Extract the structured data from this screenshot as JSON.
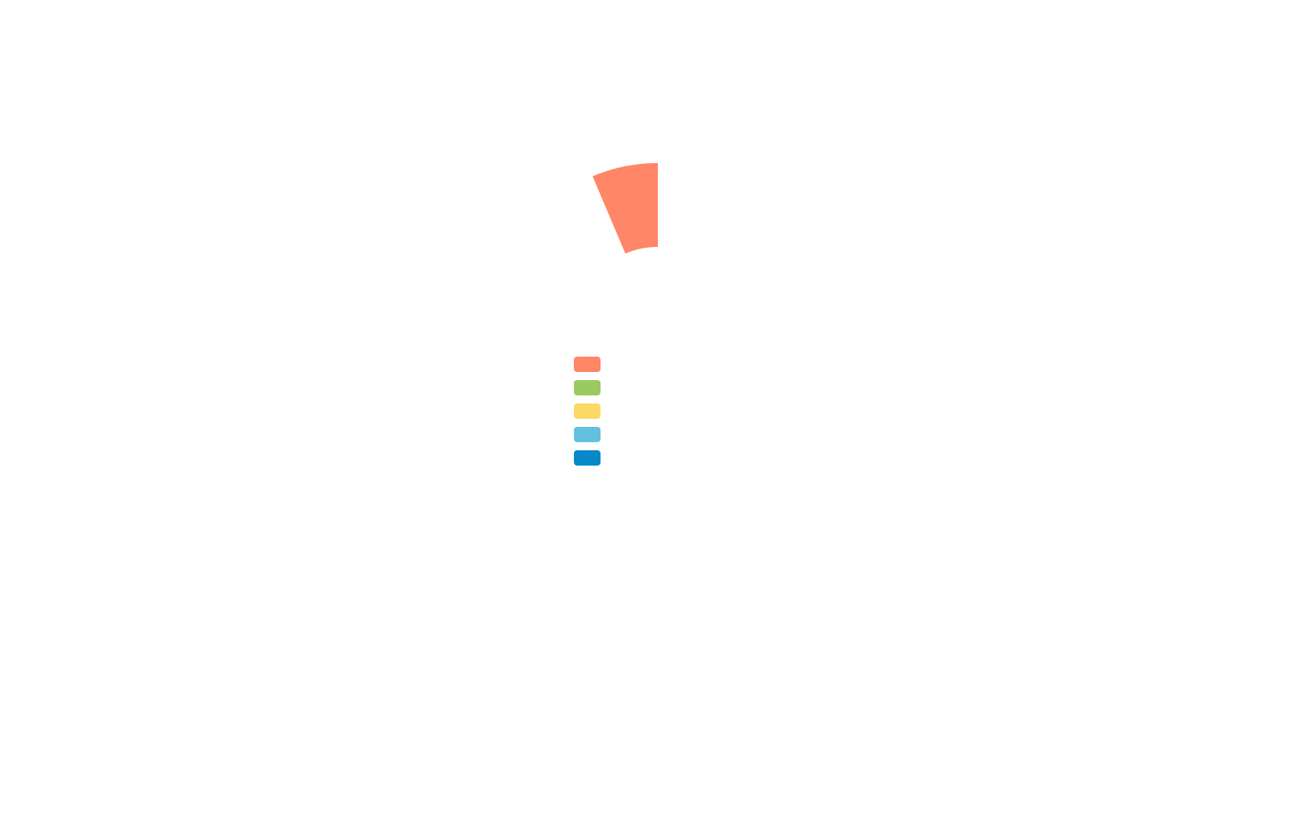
{
  "chart_data": {
    "type": "pie",
    "variant": "partial-donut",
    "series": [
      {
        "color": "#ff8666",
        "visible_segment": {
          "start_angle_deg": -23,
          "end_angle_deg": 0
        }
      },
      {
        "color": "#9bca61"
      },
      {
        "color": "#fcd865"
      },
      {
        "color": "#63c0df"
      },
      {
        "color": "#0888c9"
      }
    ],
    "legend": {
      "placement": "center",
      "items": [
        {
          "color": "#ff8666"
        },
        {
          "color": "#9bca61"
        },
        {
          "color": "#fcd865"
        },
        {
          "color": "#63c0df"
        },
        {
          "color": "#0888c9"
        }
      ]
    }
  }
}
